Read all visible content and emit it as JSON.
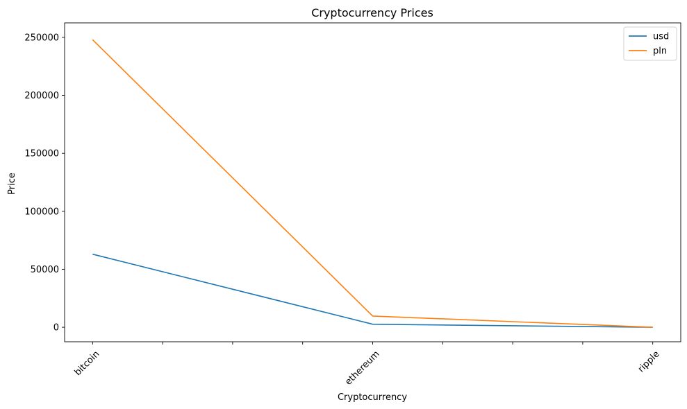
{
  "chart_data": {
    "type": "line",
    "title": "Cryptocurrency Prices",
    "xlabel": "Cryptocurrency",
    "ylabel": "Price",
    "categories": [
      "bitcoin",
      "ethereum",
      "ripple"
    ],
    "series": [
      {
        "name": "usd",
        "color": "#1f77b4",
        "values": [
          63000,
          2600,
          0.5
        ]
      },
      {
        "name": "pln",
        "color": "#ff7f0e",
        "values": [
          248000,
          9700,
          2.0
        ]
      }
    ],
    "ylim": [
      -12500,
      262500
    ],
    "yticks": [
      0,
      50000,
      100000,
      150000,
      200000,
      250000
    ],
    "ytick_labels": [
      "0",
      "50000",
      "100000",
      "150000",
      "200000",
      "250000"
    ],
    "xlim": [
      -0.1,
      2.1
    ],
    "xticks_minor": [
      0.25,
      0.5,
      0.75,
      1.25,
      1.5,
      1.75
    ],
    "grid": false,
    "legend_position": "top-right"
  }
}
